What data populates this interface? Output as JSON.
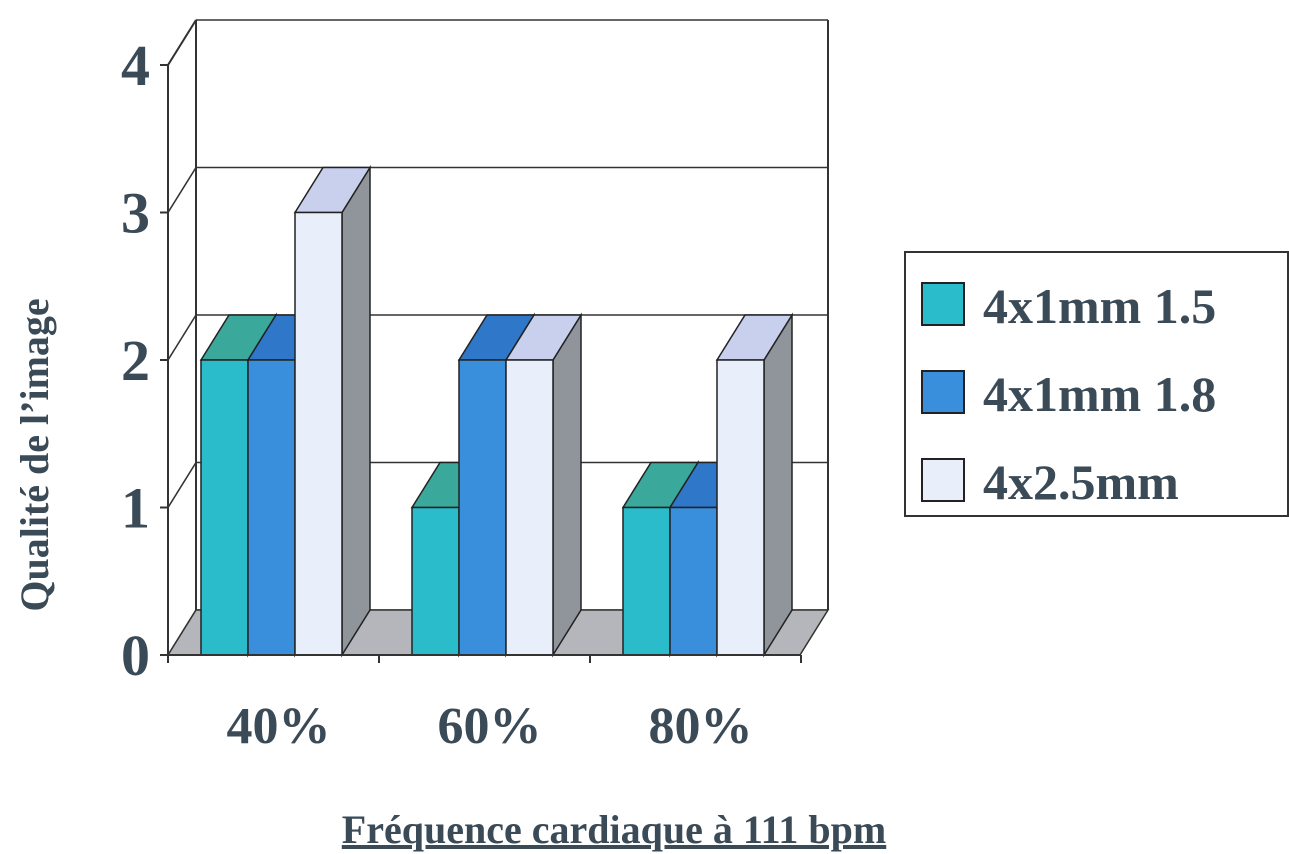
{
  "chart_data": {
    "type": "bar",
    "categories": [
      "40%",
      "60%",
      "80%"
    ],
    "series": [
      {
        "name": "4x1mm 1.5",
        "values": [
          2,
          1,
          1
        ],
        "color": "#2bbccc"
      },
      {
        "name": "4x1mm 1.8",
        "values": [
          2,
          2,
          1
        ],
        "color": "#3a8fdc"
      },
      {
        "name": "4x2.5mm",
        "values": [
          3,
          2,
          2
        ],
        "color": "#e8eefa"
      }
    ],
    "yticks": [
      "0",
      "1",
      "2",
      "3",
      "4"
    ],
    "ylim": [
      0,
      4
    ],
    "ylabel": "Qualité de l’image",
    "xlabel": "Fréquence cardiaque à 111  bpm",
    "legend_position": "right",
    "grid": true,
    "style": "3d-bar"
  }
}
